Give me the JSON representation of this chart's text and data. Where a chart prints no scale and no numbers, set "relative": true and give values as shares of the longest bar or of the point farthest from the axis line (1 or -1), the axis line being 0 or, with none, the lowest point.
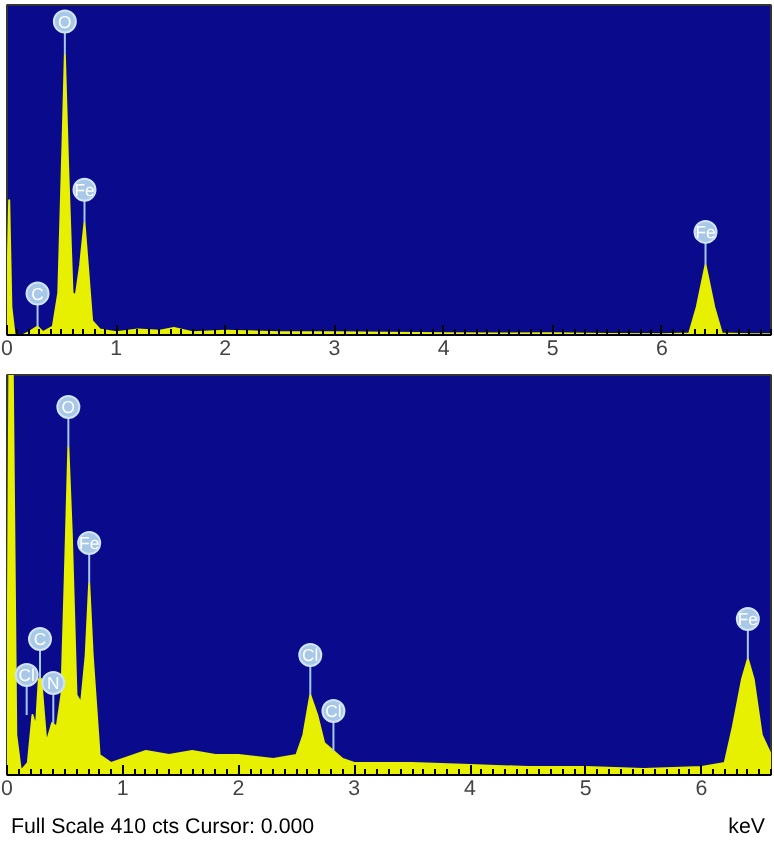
{
  "chart_data": [
    {
      "type": "area",
      "relative": true,
      "color": "#e6f000",
      "x": [
        0,
        0.01,
        0.02,
        0.04,
        0.07,
        0.15,
        0.2,
        0.28,
        0.33,
        0.42,
        0.47,
        0.51,
        0.53,
        0.56,
        0.6,
        0.63,
        0.67,
        0.71,
        0.74,
        0.78,
        0.85,
        1.0,
        1.2,
        1.4,
        1.53,
        1.7,
        2.0,
        2.5,
        3.0,
        3.5,
        4.0,
        4.5,
        5.0,
        5.5,
        6.0,
        6.25,
        6.32,
        6.4,
        6.48,
        6.55,
        6.8,
        7.0
      ],
      "values": [
        0,
        0.3,
        0.48,
        0.1,
        0,
        0,
        0.01,
        0.03,
        0.01,
        0.03,
        0.15,
        0.7,
        1.0,
        0.6,
        0.15,
        0.14,
        0.25,
        0.4,
        0.25,
        0.05,
        0.02,
        0.01,
        0.02,
        0.015,
        0.025,
        0.01,
        0.015,
        0.01,
        0.01,
        0.008,
        0.006,
        0.005,
        0.006,
        0.004,
        0.003,
        0.005,
        0.1,
        0.25,
        0.1,
        0.005,
        0.003,
        0.003
      ],
      "xlim": [
        0,
        7
      ],
      "xticks": [
        0,
        1,
        2,
        3,
        4,
        5,
        6
      ],
      "annotations": [
        {
          "text": "C",
          "x": 0.28,
          "y": 0.03
        },
        {
          "text": "O",
          "x": 0.53,
          "y": 1.0
        },
        {
          "text": "Fe",
          "x": 0.71,
          "y": 0.4
        },
        {
          "text": "Fe",
          "x": 6.4,
          "y": 0.25
        }
      ]
    },
    {
      "type": "area",
      "relative": true,
      "color": "#e6f000",
      "x": [
        0,
        0.02,
        0.05,
        0.08,
        0.12,
        0.18,
        0.22,
        0.25,
        0.275,
        0.295,
        0.34,
        0.39,
        0.43,
        0.47,
        0.5,
        0.53,
        0.56,
        0.6,
        0.64,
        0.68,
        0.71,
        0.74,
        0.8,
        0.9,
        1.0,
        1.2,
        1.4,
        1.6,
        1.8,
        2.0,
        2.3,
        2.5,
        2.56,
        2.62,
        2.68,
        2.74,
        2.82,
        2.9,
        3.0,
        3.5,
        4.0,
        4.5,
        5.0,
        5.5,
        6.0,
        6.2,
        6.27,
        6.35,
        6.4,
        6.45,
        6.52,
        6.6
      ],
      "values": [
        0,
        1.0,
        1.0,
        0.1,
        0.01,
        0.03,
        0.15,
        0.12,
        0.24,
        0.24,
        0.08,
        0.13,
        0.12,
        0.2,
        0.5,
        0.82,
        0.6,
        0.2,
        0.18,
        0.3,
        0.48,
        0.3,
        0.05,
        0.03,
        0.04,
        0.06,
        0.05,
        0.06,
        0.05,
        0.05,
        0.04,
        0.05,
        0.1,
        0.2,
        0.15,
        0.08,
        0.06,
        0.04,
        0.03,
        0.03,
        0.025,
        0.02,
        0.02,
        0.015,
        0.02,
        0.03,
        0.12,
        0.24,
        0.29,
        0.24,
        0.1,
        0.05
      ],
      "xlim": [
        0,
        6.6
      ],
      "xticks": [
        0,
        1,
        2,
        3,
        4,
        5,
        6
      ],
      "xlabel": "keV",
      "annotations": [
        {
          "text": "Cl",
          "x": 0.17,
          "y": 0.15
        },
        {
          "text": "C",
          "x": 0.285,
          "y": 0.24
        },
        {
          "text": "N",
          "x": 0.4,
          "y": 0.13
        },
        {
          "text": "O",
          "x": 0.53,
          "y": 0.82
        },
        {
          "text": "Fe",
          "x": 0.71,
          "y": 0.48
        },
        {
          "text": "Cl",
          "x": 2.62,
          "y": 0.2
        },
        {
          "text": "Cl",
          "x": 2.82,
          "y": 0.06
        },
        {
          "text": "Fe",
          "x": 6.4,
          "y": 0.29
        },
        "Full Scale 410 cts Cursor: 0.000"
      ]
    }
  ]
}
